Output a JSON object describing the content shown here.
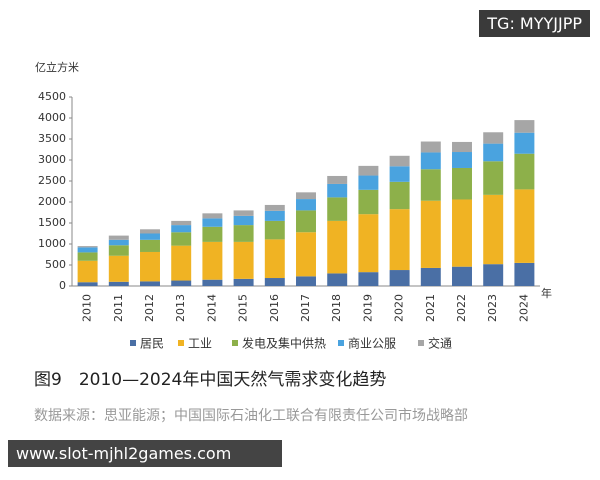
{
  "watermark": "TG: MYYJJPP",
  "caption": "图9　2010—2024年中国天然气需求变化趋势",
  "source": "数据来源：思亚能源；中国国际石油化工联合有限责任公司市场战略部",
  "site_overlay": "www.slot-mjhl2games.com",
  "chart_data": {
    "type": "stacked-bar",
    "y_axis_label": "亿立方米",
    "x_axis_unit": "年",
    "categories": [
      "2010",
      "2011",
      "2012",
      "2013",
      "2014",
      "2015",
      "2016",
      "2017",
      "2018",
      "2019",
      "2020",
      "2021",
      "2022",
      "2023",
      "2024"
    ],
    "series": [
      {
        "name": "居民",
        "color": "#4a6fa5",
        "values": [
          90,
          100,
          110,
          130,
          150,
          170,
          190,
          230,
          300,
          330,
          380,
          430,
          460,
          520,
          550
        ]
      },
      {
        "name": "工业",
        "color": "#f0b323",
        "values": [
          510,
          620,
          700,
          830,
          900,
          880,
          920,
          1050,
          1250,
          1380,
          1450,
          1600,
          1600,
          1650,
          1750
        ]
      },
      {
        "name": "发电及集中供热",
        "color": "#8db04a",
        "values": [
          200,
          250,
          290,
          320,
          360,
          400,
          440,
          520,
          560,
          580,
          650,
          750,
          750,
          800,
          850
        ]
      },
      {
        "name": "商业公服",
        "color": "#4aa3df",
        "values": [
          120,
          130,
          150,
          170,
          200,
          220,
          240,
          270,
          320,
          340,
          370,
          400,
          380,
          420,
          500
        ]
      },
      {
        "name": "交通",
        "color": "#a6a6a6",
        "values": [
          30,
          100,
          100,
          100,
          120,
          130,
          140,
          160,
          190,
          230,
          250,
          260,
          240,
          270,
          300
        ]
      }
    ],
    "ylim": [
      0,
      4500
    ],
    "yticks": [
      0,
      500,
      1000,
      1500,
      2000,
      2500,
      3000,
      3500,
      4000,
      4500
    ],
    "grid": false
  }
}
